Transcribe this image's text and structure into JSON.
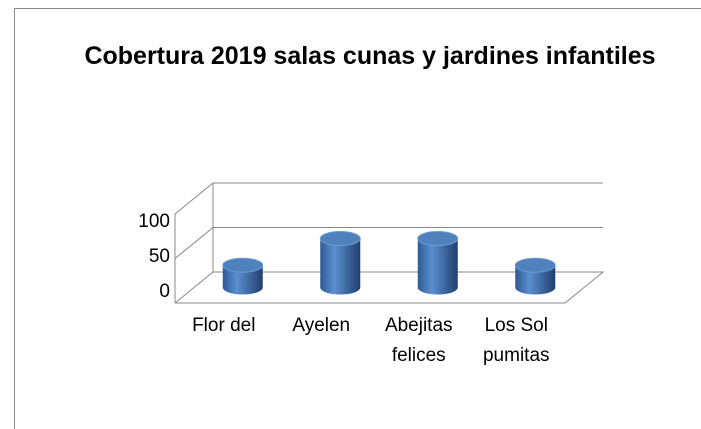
{
  "chart_data": {
    "type": "bar",
    "title": "Cobertura 2019 salas cunas y jardines infantiles",
    "categories": [
      "Flor del",
      "Ayelen",
      "Abejitas felices",
      "Los Sol pumitas"
    ],
    "values": [
      25,
      55,
      55,
      25
    ],
    "color": "#4f81bd",
    "ylim": [
      0,
      100
    ],
    "yticks": [
      0,
      50,
      100
    ],
    "grid": true
  }
}
